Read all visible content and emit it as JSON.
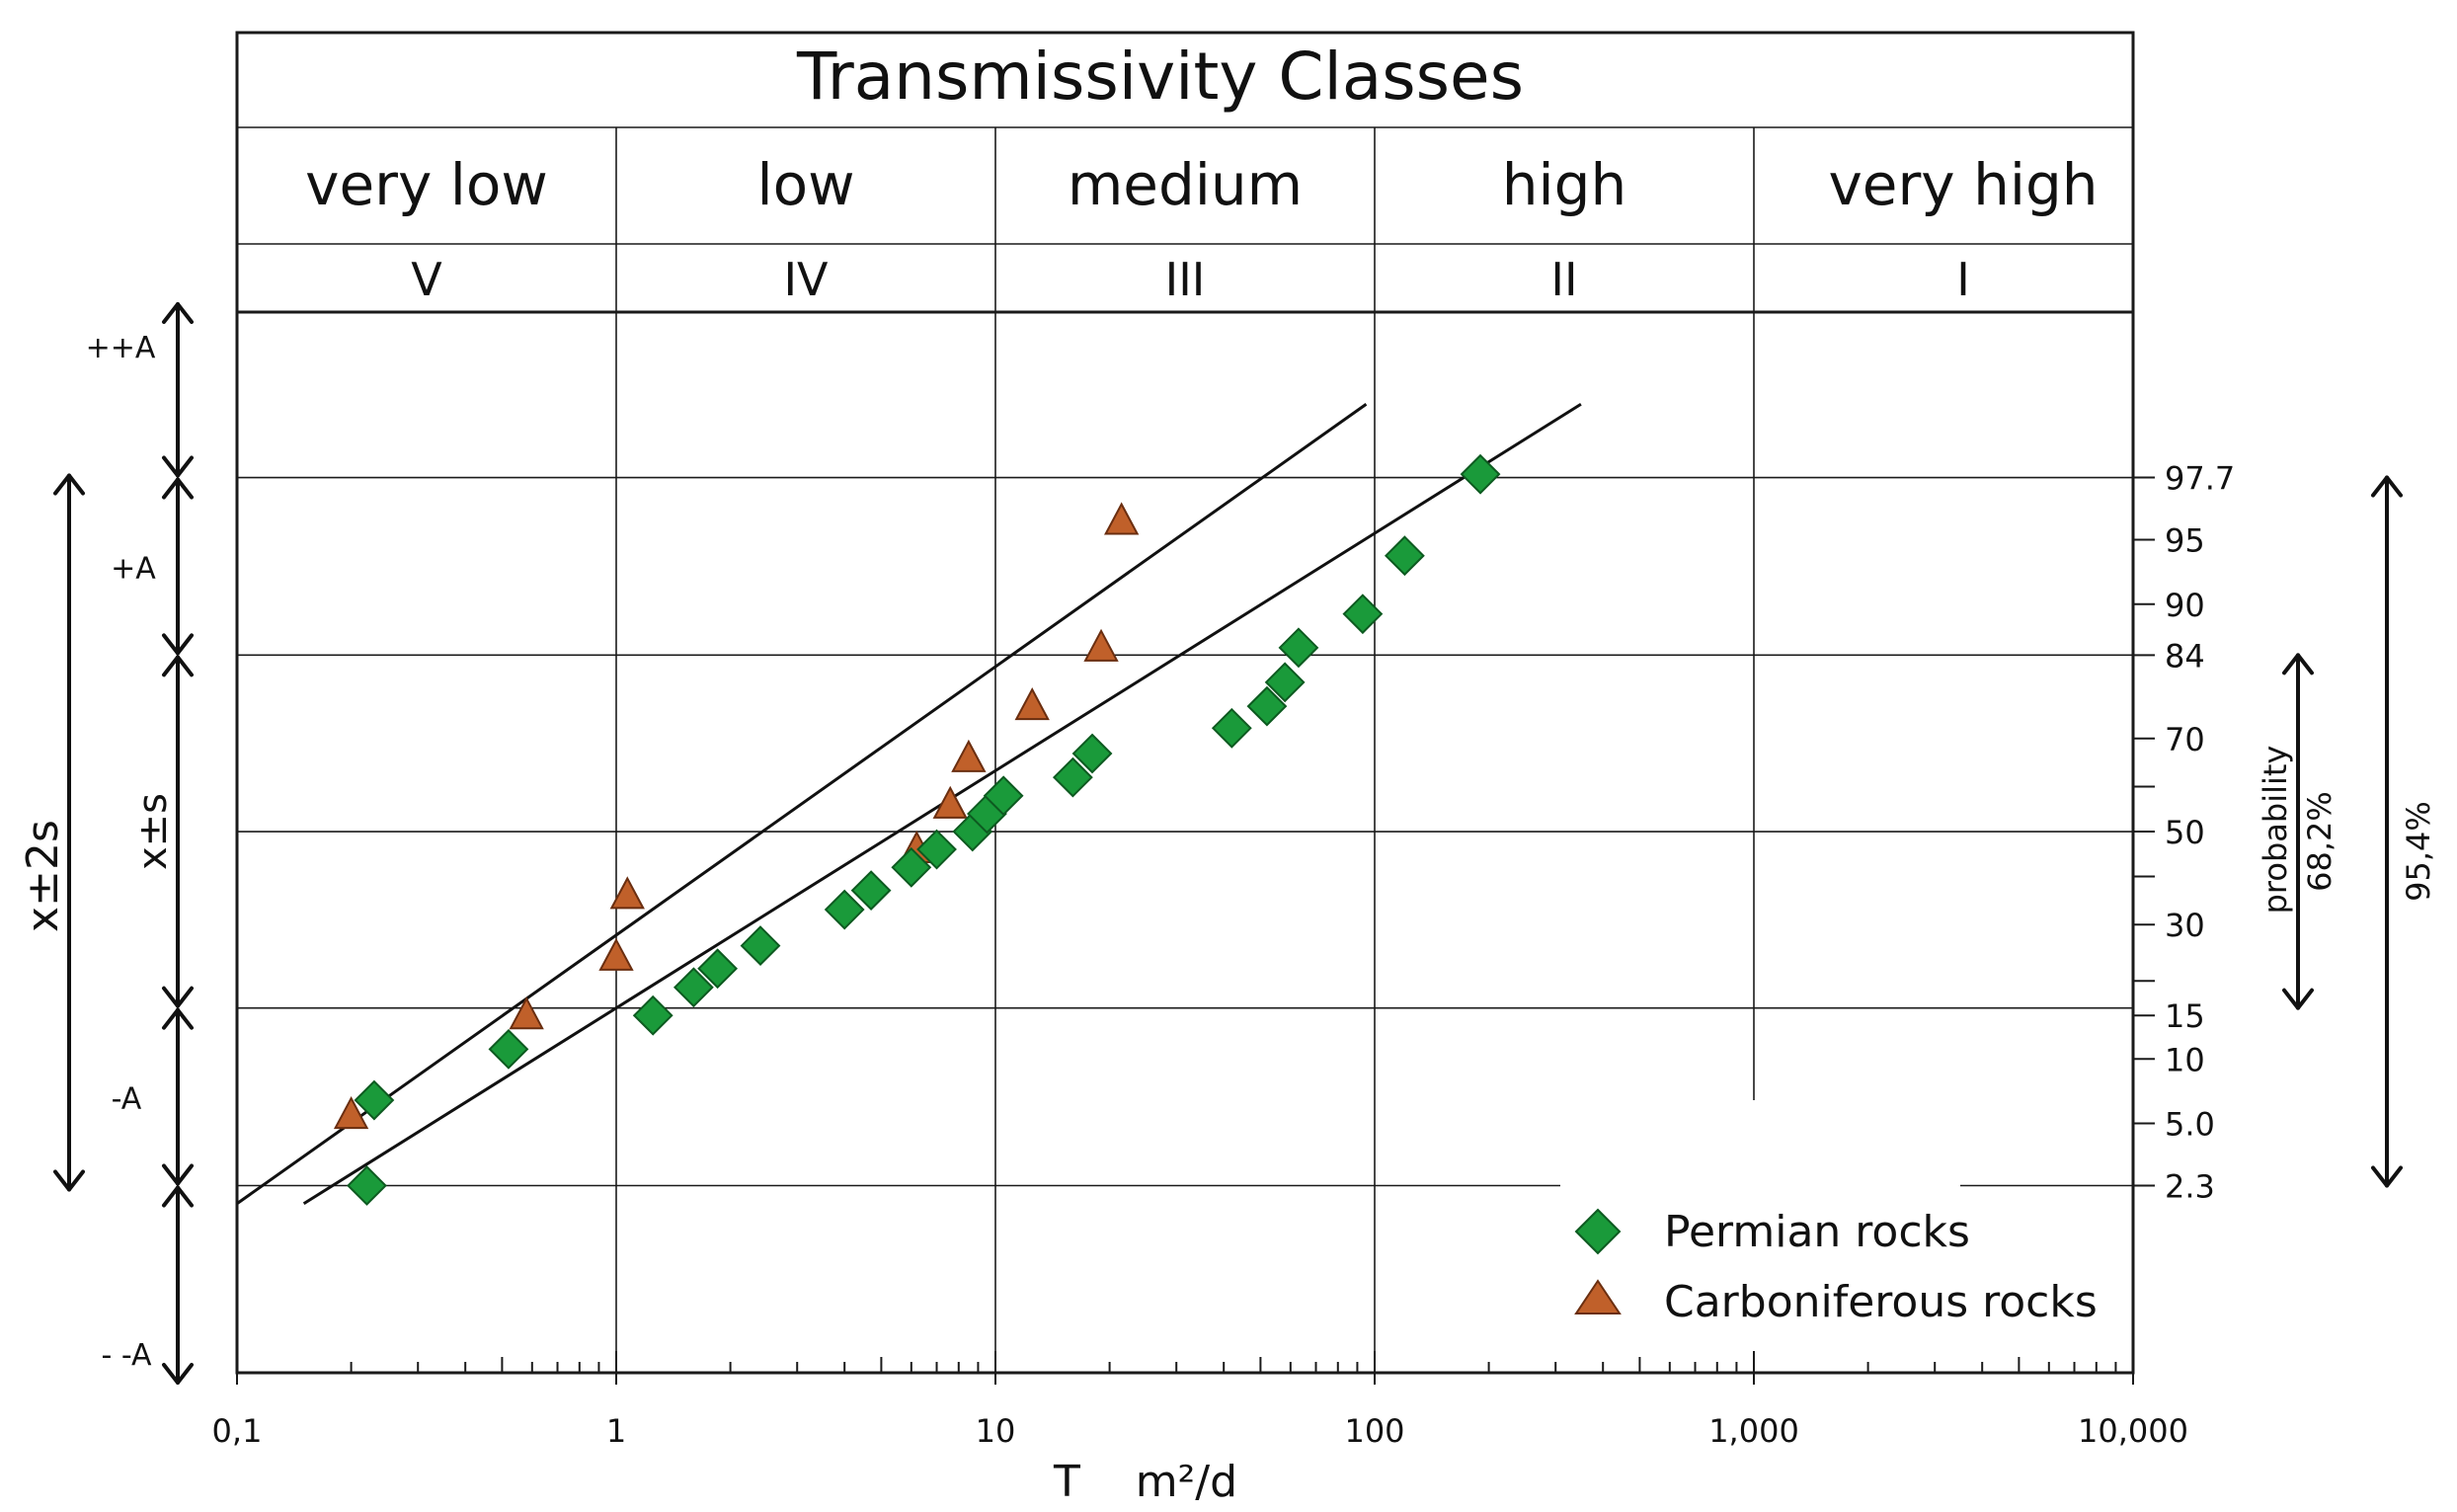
{
  "chart_data": {
    "type": "scatter",
    "title": "Transmissivity Classes",
    "xscale": "log",
    "xlim": [
      0.1,
      10000
    ],
    "xlabel": "T    m²/d",
    "x_ticks": [
      "0,1",
      "1",
      "10",
      "100",
      "1,000",
      "10,000"
    ],
    "yscale": "normal-probability",
    "ylabel": "probability",
    "y_ticks": [
      "97.7",
      "95",
      "90",
      "84",
      "70",
      "50",
      "30",
      "15",
      "10",
      "5.0",
      "2.3"
    ],
    "classes": [
      {
        "name": "very low",
        "roman": "V",
        "range": [
          0.1,
          1
        ]
      },
      {
        "name": "low",
        "roman": "IV",
        "range": [
          1,
          10
        ]
      },
      {
        "name": "medium",
        "roman": "III",
        "range": [
          10,
          100
        ]
      },
      {
        "name": "high",
        "roman": "II",
        "range": [
          100,
          1000
        ]
      },
      {
        "name": "very high",
        "roman": "I",
        "range": [
          1000,
          10000
        ]
      }
    ],
    "left_bands": [
      {
        "label": "++A",
        "range": [
          97.7,
          99.9
        ]
      },
      {
        "label": "+A",
        "range": [
          84,
          97.7
        ]
      },
      {
        "label": "x±s",
        "range": [
          16,
          84
        ]
      },
      {
        "label": "-A",
        "range": [
          2.3,
          16
        ]
      },
      {
        "label": "- -A",
        "range": [
          0.1,
          2.3
        ]
      }
    ],
    "left_outer_band": {
      "label": "x±2s",
      "range": [
        2.3,
        97.7
      ]
    },
    "right_bands": [
      {
        "label": "68,2%",
        "range": [
          16,
          84
        ]
      },
      {
        "label": "95,4%",
        "range": [
          2.3,
          97.7
        ]
      }
    ],
    "series": [
      {
        "name": "Permian rocks",
        "marker": "diamond",
        "color": "#1a9a3a",
        "points": [
          [
            0.22,
            2.3
          ],
          [
            0.23,
            6.5
          ],
          [
            0.52,
            11
          ],
          [
            1.25,
            15
          ],
          [
            1.6,
            19
          ],
          [
            1.85,
            22
          ],
          [
            2.4,
            26
          ],
          [
            4.0,
            33
          ],
          [
            4.7,
            37
          ],
          [
            6.0,
            42
          ],
          [
            7.0,
            46
          ],
          [
            8.7,
            50
          ],
          [
            9.5,
            54
          ],
          [
            10.5,
            58
          ],
          [
            16,
            62
          ],
          [
            18,
            67
          ],
          [
            42,
            72
          ],
          [
            52,
            76
          ],
          [
            58,
            80
          ],
          [
            63,
            85
          ],
          [
            93,
            89
          ],
          [
            120,
            94
          ],
          [
            190,
            97.8
          ]
        ]
      },
      {
        "name": "Carboniferous rocks",
        "marker": "triangle",
        "color": "#c0602a",
        "points": [
          [
            0.2,
            5.5
          ],
          [
            0.58,
            15
          ],
          [
            1.0,
            24
          ],
          [
            1.07,
            36
          ],
          [
            6.2,
            46
          ],
          [
            7.6,
            56
          ],
          [
            8.5,
            66
          ],
          [
            12.5,
            76
          ],
          [
            19,
            85
          ],
          [
            21.5,
            96
          ]
        ]
      }
    ],
    "fit_lines": [
      {
        "series": "Carboniferous rocks",
        "from": [
          0.1,
          1.8
        ],
        "to": [
          95,
          99.2
        ]
      },
      {
        "series": "Permian rocks",
        "from": [
          0.15,
          1.8
        ],
        "to": [
          350,
          99.2
        ]
      }
    ],
    "legend": "bottom-right"
  }
}
